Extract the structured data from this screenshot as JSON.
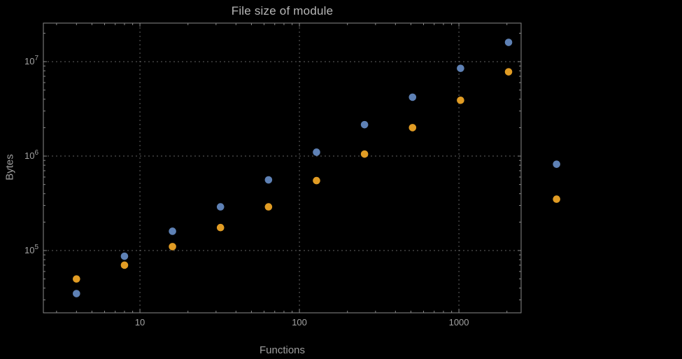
{
  "chart_data": {
    "type": "scatter",
    "title": "File size of module",
    "xlabel": "Functions",
    "ylabel": "Bytes",
    "x_scale": "log",
    "y_scale": "log",
    "xlim": [
      2.48,
      2455
    ],
    "ylim": [
      21900,
      25600000
    ],
    "grid": true,
    "legend": "none",
    "x_ticks": [
      10,
      100,
      1000
    ],
    "x_tick_labels": [
      "10",
      "100",
      "1000"
    ],
    "y_ticks": [
      100000,
      1000000,
      10000000
    ],
    "y_tick_labels": [
      "10⁵",
      "10⁶",
      "10⁷"
    ],
    "x": [
      4,
      8,
      16,
      32,
      64,
      128,
      256,
      512,
      1024,
      2048,
      4096
    ],
    "series": [
      {
        "name": "blue",
        "color": "#5e81b5",
        "values": [
          35000,
          87000,
          160000,
          290000,
          560000,
          1100000,
          2150000,
          4200000,
          8500000,
          16000000,
          820000
        ]
      },
      {
        "name": "orange",
        "color": "#e19c24",
        "values": [
          50000,
          70000,
          110000,
          175000,
          290000,
          550000,
          1050000,
          2000000,
          3900000,
          7800000,
          350000
        ]
      }
    ],
    "colors": {
      "background": "#000000",
      "frame": "#8a8a8a",
      "grid": "#636363",
      "text": "#a2a2a2",
      "title": "#b7b7b7"
    }
  }
}
